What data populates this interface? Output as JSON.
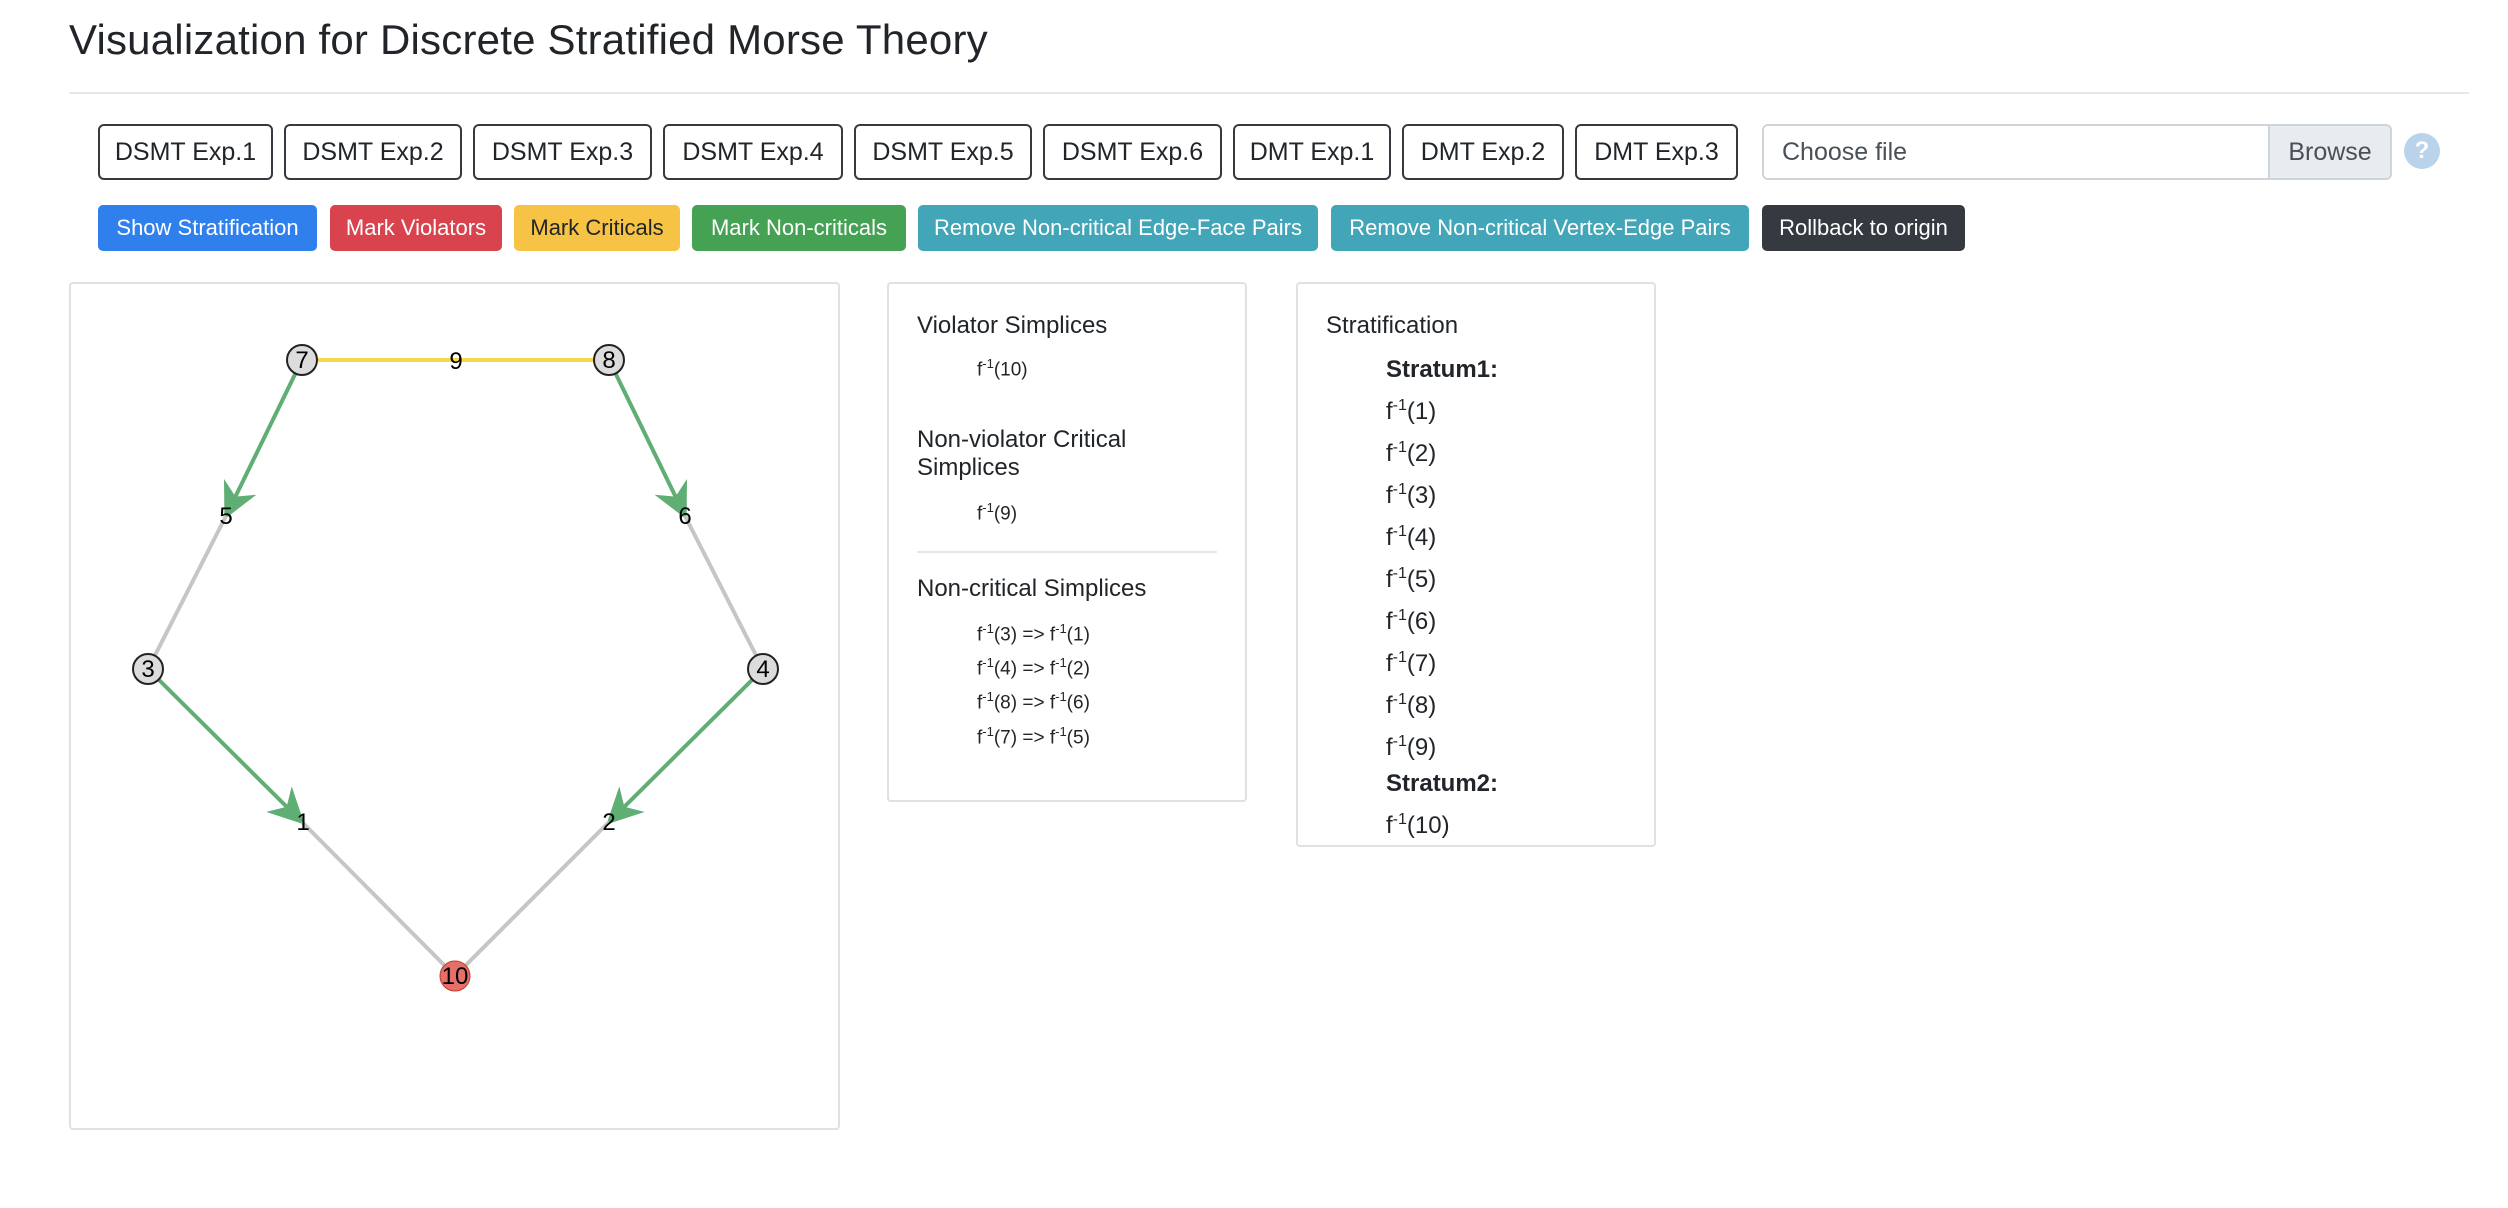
{
  "page": {
    "title": "Visualization for Discrete Stratified Morse Theory"
  },
  "experiments": [
    "DSMT Exp.1",
    "DSMT Exp.2",
    "DSMT Exp.3",
    "DSMT Exp.4",
    "DSMT Exp.5",
    "DSMT Exp.6",
    "DMT Exp.1",
    "DMT Exp.2",
    "DMT Exp.3"
  ],
  "file_input": {
    "placeholder": "Choose file",
    "browse_label": "Browse",
    "help_icon": "?"
  },
  "actions": [
    {
      "label": "Show Stratification",
      "bg": "#2f80ed",
      "fg": "#ffffff"
    },
    {
      "label": "Mark Violators",
      "bg": "#d9434e",
      "fg": "#ffffff"
    },
    {
      "label": "Mark Criticals",
      "bg": "#f6c344",
      "fg": "#212529"
    },
    {
      "label": "Mark Non-criticals",
      "bg": "#45a254",
      "fg": "#ffffff"
    },
    {
      "label": "Remove Non-critical Edge-Face Pairs",
      "bg": "#43a5b8",
      "fg": "#ffffff"
    },
    {
      "label": "Remove Non-critical Vertex-Edge Pairs",
      "bg": "#43a5b8",
      "fg": "#ffffff"
    },
    {
      "label": "Rollback to origin",
      "bg": "#343a40",
      "fg": "#ffffff"
    }
  ],
  "graph": {
    "colors": {
      "critical": "#f6d94a",
      "noncritical": "#5fae73",
      "plain": "#c6c6c6",
      "violator": "#e57068",
      "vertex": "#dcdcdc"
    },
    "vertices": [
      {
        "label": "7"
      },
      {
        "label": "8"
      },
      {
        "label": "3"
      },
      {
        "label": "4"
      },
      {
        "label": "10",
        "violator": true
      }
    ],
    "edge_labels": [
      "9",
      "5",
      "6",
      "1",
      "2"
    ]
  },
  "violators": {
    "title": "Violator Simplices",
    "items": [
      {
        "pre": "f",
        "sup": "-1",
        "post": "(10)"
      }
    ]
  },
  "nonviolator_critical": {
    "title": "Non-violator Critical Simplices",
    "items": [
      {
        "pre": "f",
        "sup": "-1",
        "post": "(9)"
      }
    ]
  },
  "noncritical": {
    "title": "Non-critical Simplices",
    "items": [
      {
        "a": "(3)",
        "b": "(1)"
      },
      {
        "a": "(4)",
        "b": "(2)"
      },
      {
        "a": "(8)",
        "b": "(6)"
      },
      {
        "a": "(7)",
        "b": "(5)"
      }
    ],
    "prefix": "f",
    "sup": "-1",
    "arrow": " => "
  },
  "stratification": {
    "title": "Stratification",
    "strata": [
      {
        "name": "Stratum1:",
        "items": [
          "(1)",
          "(2)",
          "(3)",
          "(4)",
          "(5)",
          "(6)",
          "(7)",
          "(8)",
          "(9)"
        ]
      },
      {
        "name": "Stratum2:",
        "items": [
          "(10)"
        ]
      }
    ],
    "prefix": "f",
    "sup": "-1"
  }
}
